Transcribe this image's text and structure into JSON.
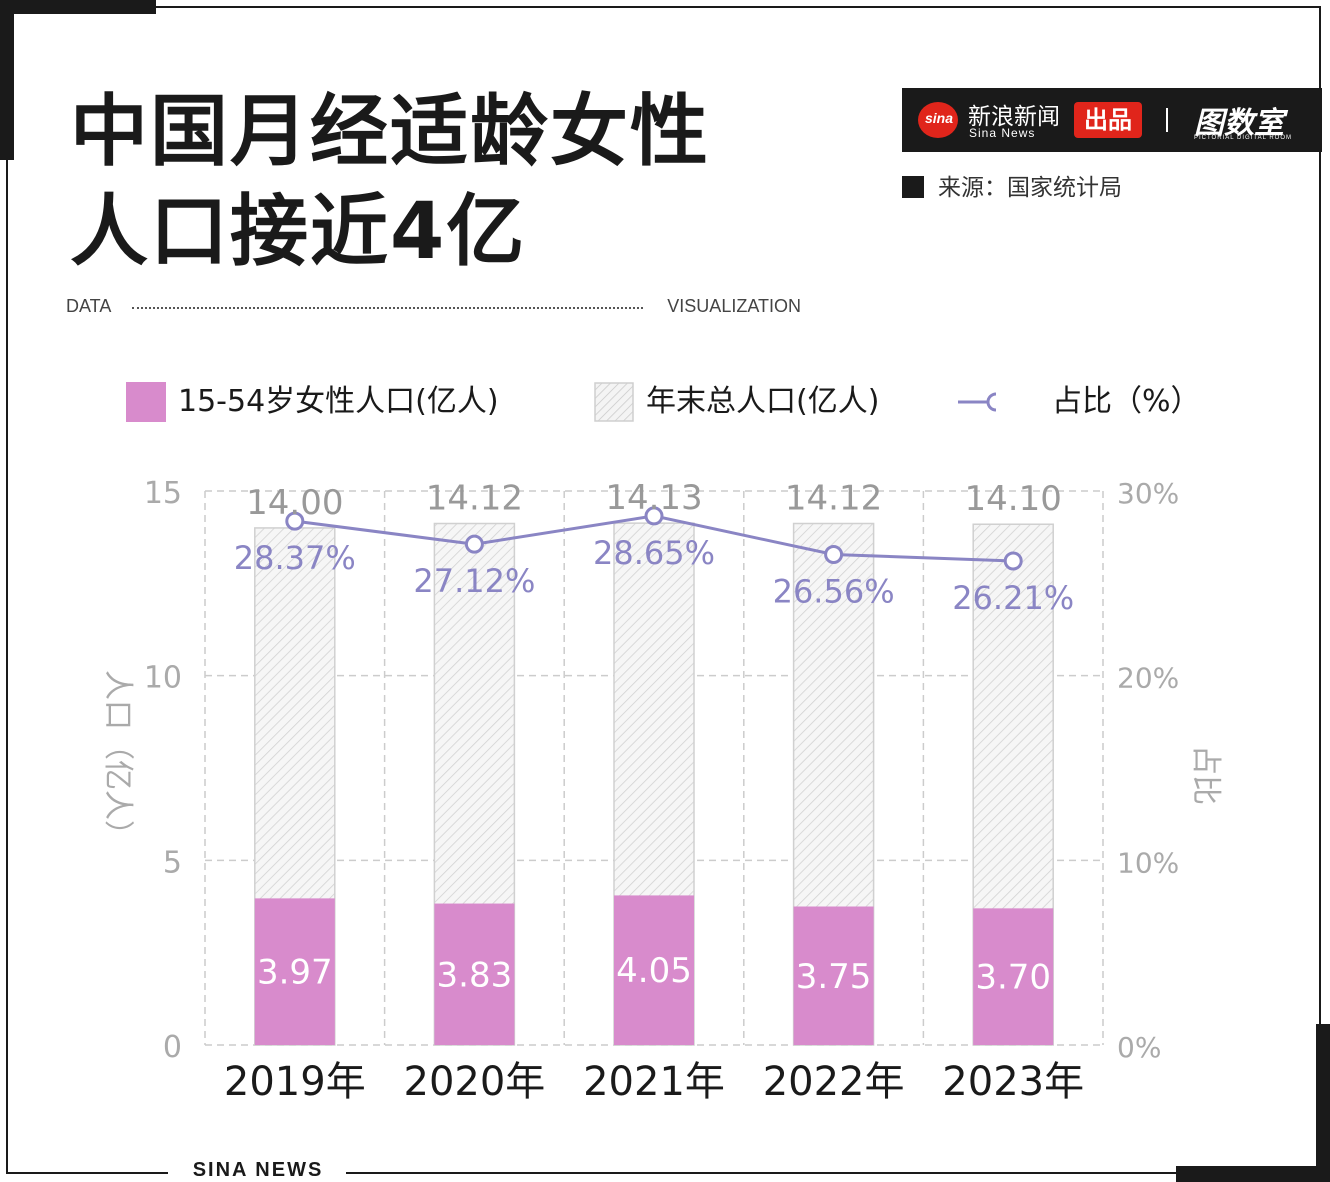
{
  "header": {
    "title_line1": "中国月经适龄女性",
    "title_line2": "人口接近4亿",
    "data_label": "DATA",
    "visualization_label": "VISUALIZATION"
  },
  "brand": {
    "sina_logo_text": "sina",
    "sina_cn": "新浪新闻",
    "sina_en": "Sina News",
    "chupin": "出品",
    "tushu": "图数室",
    "tushu_en": "PICTORIAL DIGITAL ROOM"
  },
  "source": "来源：国家统计局",
  "footer": "SINA NEWS",
  "colors": {
    "female_bar": "#d88bcc",
    "total_bar_stroke": "#d0d0d0",
    "ratio_line": "#8a85c4",
    "grid": "#cccccc",
    "axis_text": "#aaaaaa"
  },
  "chart_data": {
    "type": "bar",
    "categories": [
      "2019年",
      "2020年",
      "2021年",
      "2022年",
      "2023年"
    ],
    "series": [
      {
        "name": "15-54岁女性人口(亿人)",
        "type": "bar",
        "values": [
          3.97,
          3.83,
          4.05,
          3.75,
          3.7
        ],
        "labels": [
          "3.97",
          "3.83",
          "4.05",
          "3.75",
          "3.70"
        ]
      },
      {
        "name": "年末总人口(亿人)",
        "type": "bar",
        "values": [
          14.0,
          14.12,
          14.13,
          14.12,
          14.1
        ],
        "labels": [
          "14.00",
          "14.12",
          "14.13",
          "14.12",
          "14.10"
        ]
      },
      {
        "name": "占比（%）",
        "type": "line",
        "axis": "right",
        "values": [
          28.37,
          27.12,
          28.65,
          26.56,
          26.21
        ],
        "labels": [
          "28.37%",
          "27.12%",
          "28.65%",
          "26.56%",
          "26.21%"
        ]
      }
    ],
    "ylabel": "人口（亿人）",
    "y2label": "占比",
    "ylim": [
      0,
      15
    ],
    "y2lim": [
      0,
      30
    ],
    "yticks": [
      "0",
      "5",
      "10",
      "15"
    ],
    "y2ticks": [
      "0%",
      "10%",
      "20%",
      "30%"
    ],
    "grid": true,
    "legend_position": "top"
  }
}
